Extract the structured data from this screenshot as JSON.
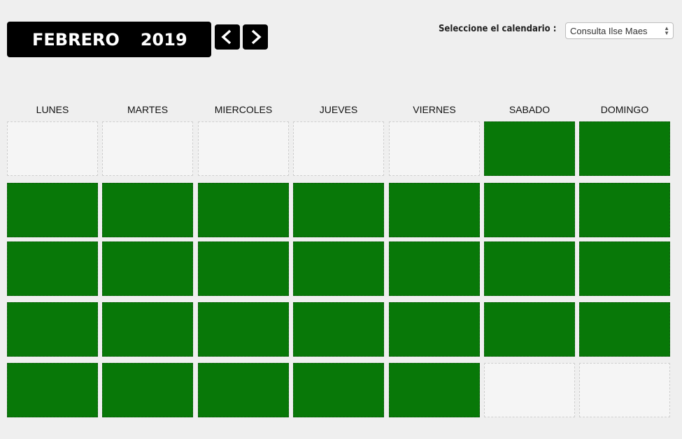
{
  "header": {
    "month": "FEBRERO",
    "year": "2019",
    "prev_icon": "chevron-left-icon",
    "next_icon": "chevron-right-icon"
  },
  "calendar_selector": {
    "label": "Seleccione el calendario :",
    "selected": "Consulta Ilse Maes"
  },
  "weekdays": [
    "LUNES",
    "MARTES",
    "MIERCOLES",
    "JUEVES",
    "VIERNES",
    "SABADO",
    "DOMINGO"
  ],
  "weeks": [
    [
      "empty",
      "empty",
      "empty",
      "empty",
      "empty",
      "green",
      "green"
    ],
    [
      "green",
      "green",
      "green",
      "green",
      "green",
      "green",
      "green"
    ],
    [
      "green",
      "green",
      "green",
      "green",
      "green",
      "green",
      "green"
    ],
    [
      "green",
      "green",
      "green",
      "green",
      "green",
      "green",
      "green"
    ],
    [
      "green",
      "green",
      "green",
      "green",
      "green",
      "empty",
      "empty"
    ]
  ],
  "colors": {
    "available": "#087808",
    "empty": "#f5f5f5",
    "header_bg": "#000000"
  }
}
